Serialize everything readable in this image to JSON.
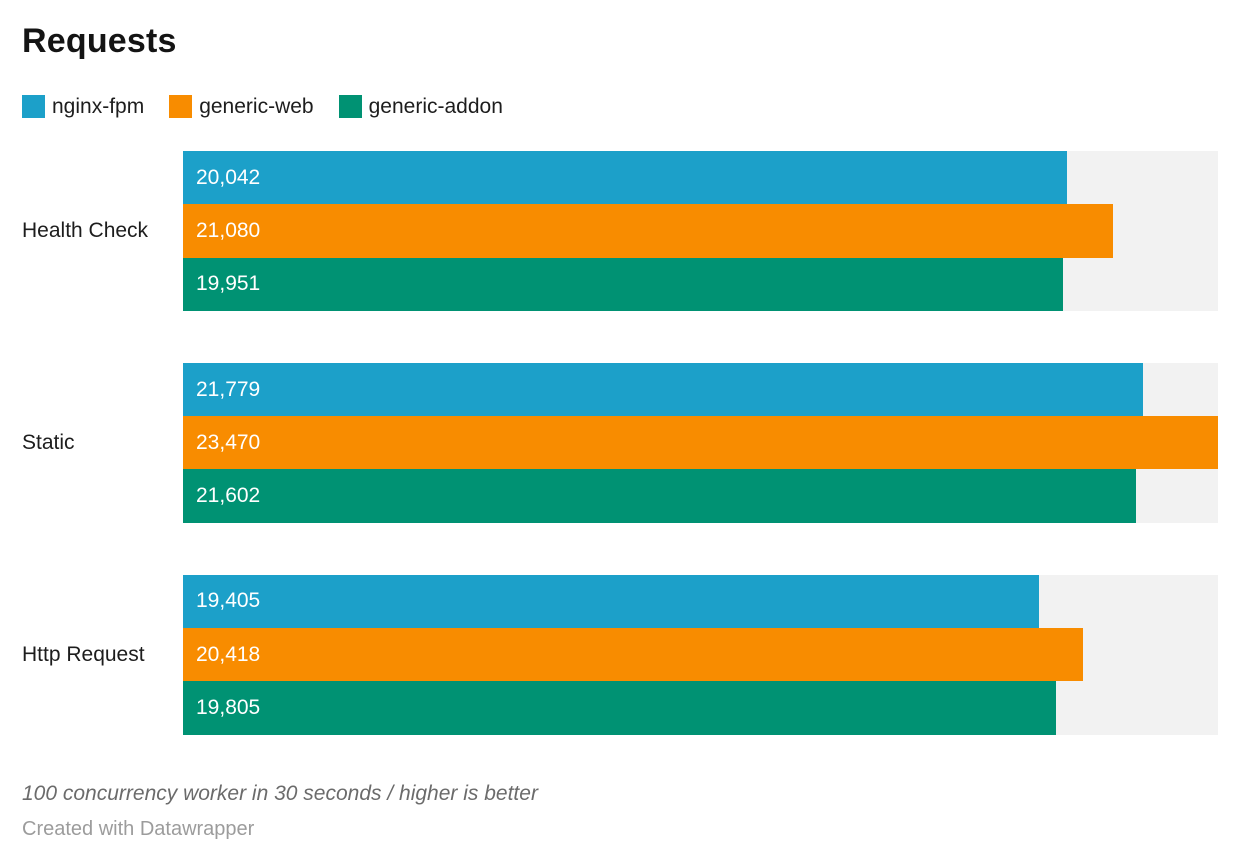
{
  "chart_data": {
    "type": "bar",
    "orientation": "horizontal",
    "title": "Requests",
    "categories": [
      "Health Check",
      "Static",
      "Http Request"
    ],
    "series": [
      {
        "name": "nginx-fpm",
        "color": "#1ca0c9",
        "values": [
          20042,
          21779,
          19405
        ]
      },
      {
        "name": "generic-web",
        "color": "#f88c00",
        "values": [
          21080,
          23470,
          20418
        ]
      },
      {
        "name": "generic-addon",
        "color": "#009273",
        "values": [
          19951,
          21602,
          19805
        ]
      }
    ],
    "value_labels": [
      [
        "20,042",
        "21,779",
        "19,405"
      ],
      [
        "21,080",
        "23,470",
        "20,418"
      ],
      [
        "19,951",
        "21,602",
        "19,805"
      ]
    ],
    "xmax": 23470,
    "track_color": "#f2f2f2",
    "grid": false,
    "legend_position": "top",
    "note": "100 concurrency worker in 30 seconds / higher is better",
    "attribution": "Created with Datawrapper"
  }
}
